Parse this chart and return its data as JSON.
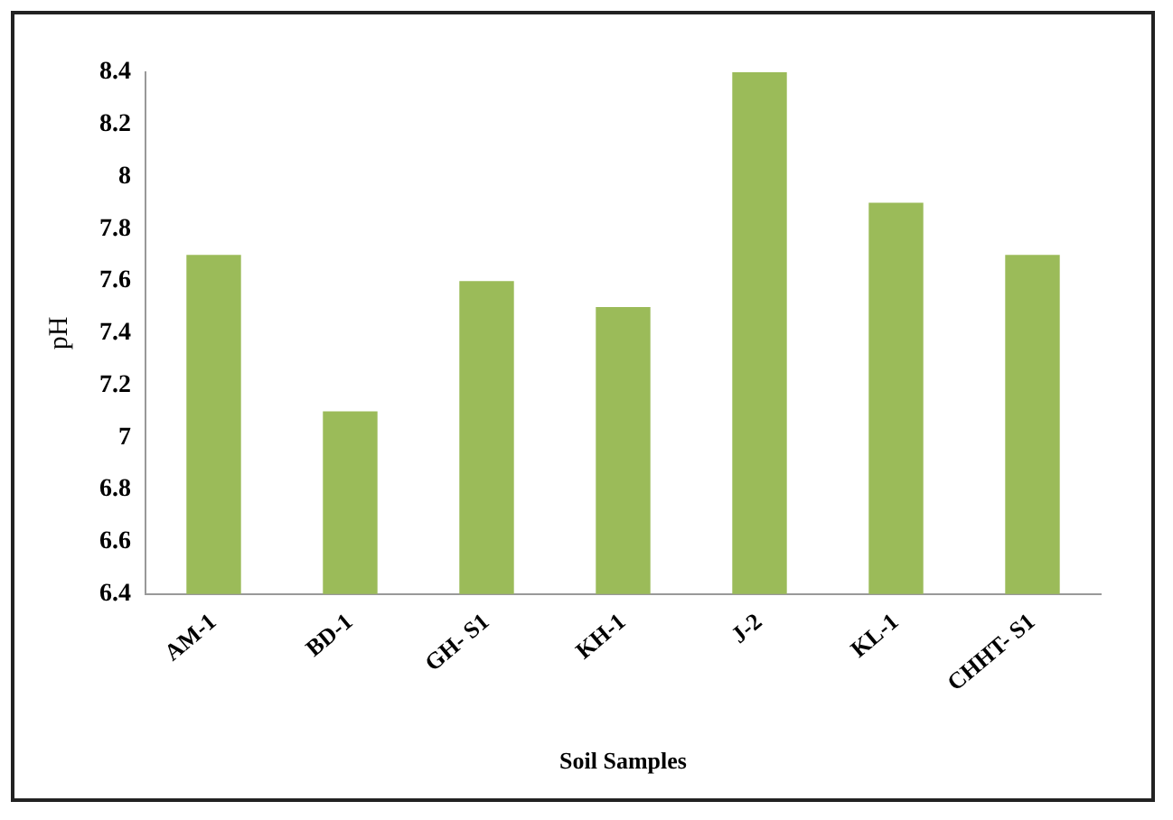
{
  "chart_data": {
    "type": "bar",
    "xlabel": "Soil Samples",
    "ylabel": "pH",
    "categories": [
      "AM-1",
      "BD-1",
      "GH- S1",
      "KH-1",
      "J-2",
      "KL-1",
      "CHHT- S1"
    ],
    "values": [
      7.7,
      7.1,
      7.6,
      7.5,
      8.4,
      7.9,
      7.7
    ],
    "color": "#9bbb59",
    "ylim": [
      6.4,
      8.4
    ],
    "yticks": [
      6.4,
      6.6,
      6.8,
      7,
      7.2,
      7.4,
      7.6,
      7.8,
      8,
      8.2,
      8.4
    ],
    "grid": false,
    "legend": false
  }
}
